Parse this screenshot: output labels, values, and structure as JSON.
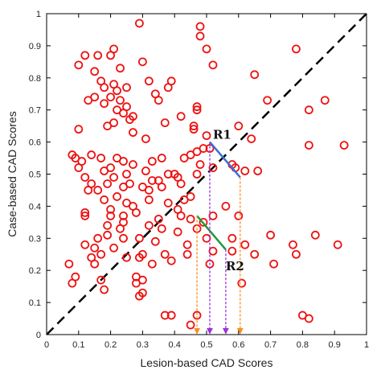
{
  "chart_data": {
    "type": "scatter",
    "xlabel": "Lesion-based CAD Scores",
    "ylabel": "Case-based CAD Scores",
    "xlim": [
      0,
      1
    ],
    "ylim": [
      0,
      1
    ],
    "xticks": [
      "0",
      "0.1",
      "0.2",
      "0.3",
      "0.4",
      "0.5",
      "0.6",
      "0.7",
      "0.8",
      "0.9",
      "1"
    ],
    "yticks": [
      "0",
      "0.1",
      "0.2",
      "0.3",
      "0.4",
      "0.5",
      "0.6",
      "0.7",
      "0.8",
      "0.9",
      "1"
    ],
    "grid": false,
    "colors": {
      "points": "#ee1111",
      "diagonal": "#000000",
      "r1_line": "#3a6fd8",
      "r2_line": "#1f9a3a",
      "arrow_orange": "#ff8c1a",
      "arrow_purple": "#9b30d9"
    },
    "diagonal": {
      "x": [
        0,
        1
      ],
      "y": [
        0,
        1
      ],
      "style": "dashed"
    },
    "annotations": [
      {
        "text": "R1",
        "x": 0.51,
        "y": 0.61
      },
      {
        "text": "R2",
        "x": 0.55,
        "y": 0.2
      }
    ],
    "segments": [
      {
        "name": "R1",
        "color": "r1_line",
        "x": [
          0.51,
          0.605
        ],
        "y": [
          0.6,
          0.49
        ]
      },
      {
        "name": "R2",
        "color": "r2_line",
        "x": [
          0.47,
          0.56
        ],
        "y": [
          0.37,
          0.265
        ]
      }
    ],
    "arrows": [
      {
        "color": "arrow_orange",
        "x": 0.47,
        "y_from": 0.37,
        "y_to": 0.0
      },
      {
        "color": "arrow_orange",
        "x": 0.605,
        "y_from": 0.49,
        "y_to": 0.0
      },
      {
        "color": "arrow_purple",
        "x": 0.51,
        "y_from": 0.6,
        "y_to": 0.0
      },
      {
        "color": "arrow_purple",
        "x": 0.56,
        "y_from": 0.265,
        "y_to": 0.0
      }
    ],
    "points": [
      [
        0.29,
        0.97
      ],
      [
        0.48,
        0.96
      ],
      [
        0.12,
        0.87
      ],
      [
        0.2,
        0.87
      ],
      [
        0.16,
        0.87
      ],
      [
        0.21,
        0.89
      ],
      [
        0.48,
        0.93
      ],
      [
        0.5,
        0.89
      ],
      [
        0.52,
        0.84
      ],
      [
        0.78,
        0.89
      ],
      [
        0.1,
        0.84
      ],
      [
        0.15,
        0.82
      ],
      [
        0.23,
        0.83
      ],
      [
        0.3,
        0.85
      ],
      [
        0.17,
        0.79
      ],
      [
        0.18,
        0.77
      ],
      [
        0.21,
        0.78
      ],
      [
        0.22,
        0.76
      ],
      [
        0.25,
        0.77
      ],
      [
        0.32,
        0.79
      ],
      [
        0.34,
        0.75
      ],
      [
        0.38,
        0.77
      ],
      [
        0.39,
        0.79
      ],
      [
        0.15,
        0.74
      ],
      [
        0.2,
        0.74
      ],
      [
        0.23,
        0.73
      ],
      [
        0.25,
        0.71
      ],
      [
        0.35,
        0.73
      ],
      [
        0.47,
        0.7
      ],
      [
        0.47,
        0.71
      ],
      [
        0.13,
        0.73
      ],
      [
        0.18,
        0.72
      ],
      [
        0.22,
        0.7
      ],
      [
        0.24,
        0.69
      ],
      [
        0.27,
        0.68
      ],
      [
        0.65,
        0.81
      ],
      [
        0.69,
        0.73
      ],
      [
        0.82,
        0.7
      ],
      [
        0.87,
        0.73
      ],
      [
        0.19,
        0.65
      ],
      [
        0.21,
        0.66
      ],
      [
        0.26,
        0.67
      ],
      [
        0.37,
        0.66
      ],
      [
        0.42,
        0.68
      ],
      [
        0.46,
        0.65
      ],
      [
        0.1,
        0.64
      ],
      [
        0.27,
        0.63
      ],
      [
        0.31,
        0.61
      ],
      [
        0.46,
        0.64
      ],
      [
        0.64,
        0.61
      ],
      [
        0.5,
        0.62
      ],
      [
        0.6,
        0.65
      ],
      [
        0.08,
        0.56
      ],
      [
        0.09,
        0.55
      ],
      [
        0.11,
        0.54
      ],
      [
        0.14,
        0.56
      ],
      [
        0.17,
        0.55
      ],
      [
        0.22,
        0.55
      ],
      [
        0.24,
        0.54
      ],
      [
        0.18,
        0.51
      ],
      [
        0.2,
        0.52
      ],
      [
        0.27,
        0.53
      ],
      [
        0.33,
        0.54
      ],
      [
        0.36,
        0.55
      ],
      [
        0.43,
        0.55
      ],
      [
        0.45,
        0.56
      ],
      [
        0.47,
        0.57
      ],
      [
        0.48,
        0.53
      ],
      [
        0.52,
        0.52
      ],
      [
        0.58,
        0.53
      ],
      [
        0.49,
        0.58
      ],
      [
        0.51,
        0.58
      ],
      [
        0.82,
        0.59
      ],
      [
        0.93,
        0.59
      ],
      [
        0.1,
        0.52
      ],
      [
        0.12,
        0.49
      ],
      [
        0.14,
        0.47
      ],
      [
        0.19,
        0.47
      ],
      [
        0.21,
        0.49
      ],
      [
        0.25,
        0.5
      ],
      [
        0.31,
        0.51
      ],
      [
        0.33,
        0.48
      ],
      [
        0.35,
        0.48
      ],
      [
        0.38,
        0.5
      ],
      [
        0.4,
        0.5
      ],
      [
        0.41,
        0.49
      ],
      [
        0.47,
        0.5
      ],
      [
        0.59,
        0.52
      ],
      [
        0.62,
        0.51
      ],
      [
        0.66,
        0.51
      ],
      [
        0.13,
        0.45
      ],
      [
        0.16,
        0.45
      ],
      [
        0.24,
        0.46
      ],
      [
        0.26,
        0.47
      ],
      [
        0.3,
        0.46
      ],
      [
        0.32,
        0.45
      ],
      [
        0.36,
        0.46
      ],
      [
        0.42,
        0.47
      ],
      [
        0.18,
        0.42
      ],
      [
        0.22,
        0.43
      ],
      [
        0.25,
        0.41
      ],
      [
        0.32,
        0.42
      ],
      [
        0.38,
        0.41
      ],
      [
        0.43,
        0.42
      ],
      [
        0.45,
        0.43
      ],
      [
        0.2,
        0.39
      ],
      [
        0.27,
        0.4
      ],
      [
        0.28,
        0.38
      ],
      [
        0.35,
        0.36
      ],
      [
        0.41,
        0.39
      ],
      [
        0.42,
        0.37
      ],
      [
        0.45,
        0.36
      ],
      [
        0.52,
        0.37
      ],
      [
        0.56,
        0.4
      ],
      [
        0.6,
        0.37
      ],
      [
        0.12,
        0.37
      ],
      [
        0.12,
        0.38
      ],
      [
        0.2,
        0.37
      ],
      [
        0.24,
        0.37
      ],
      [
        0.24,
        0.35
      ],
      [
        0.19,
        0.34
      ],
      [
        0.23,
        0.33
      ],
      [
        0.32,
        0.34
      ],
      [
        0.36,
        0.33
      ],
      [
        0.47,
        0.33
      ],
      [
        0.49,
        0.35
      ],
      [
        0.19,
        0.31
      ],
      [
        0.24,
        0.3
      ],
      [
        0.29,
        0.3
      ],
      [
        0.41,
        0.32
      ],
      [
        0.5,
        0.3
      ],
      [
        0.58,
        0.3
      ],
      [
        0.7,
        0.31
      ],
      [
        0.84,
        0.31
      ],
      [
        0.16,
        0.3
      ],
      [
        0.12,
        0.28
      ],
      [
        0.15,
        0.27
      ],
      [
        0.21,
        0.27
      ],
      [
        0.34,
        0.29
      ],
      [
        0.44,
        0.28
      ],
      [
        0.62,
        0.28
      ],
      [
        0.77,
        0.28
      ],
      [
        0.78,
        0.25
      ],
      [
        0.91,
        0.28
      ],
      [
        0.14,
        0.24
      ],
      [
        0.17,
        0.25
      ],
      [
        0.25,
        0.24
      ],
      [
        0.29,
        0.24
      ],
      [
        0.3,
        0.25
      ],
      [
        0.37,
        0.25
      ],
      [
        0.44,
        0.25
      ],
      [
        0.52,
        0.26
      ],
      [
        0.58,
        0.26
      ],
      [
        0.65,
        0.25
      ],
      [
        0.07,
        0.22
      ],
      [
        0.15,
        0.22
      ],
      [
        0.33,
        0.22
      ],
      [
        0.39,
        0.23
      ],
      [
        0.51,
        0.22
      ],
      [
        0.71,
        0.22
      ],
      [
        0.08,
        0.16
      ],
      [
        0.09,
        0.18
      ],
      [
        0.17,
        0.17
      ],
      [
        0.28,
        0.18
      ],
      [
        0.28,
        0.16
      ],
      [
        0.3,
        0.17
      ],
      [
        0.18,
        0.14
      ],
      [
        0.29,
        0.12
      ],
      [
        0.3,
        0.13
      ],
      [
        0.61,
        0.16
      ],
      [
        0.37,
        0.06
      ],
      [
        0.39,
        0.06
      ],
      [
        0.47,
        0.06
      ],
      [
        0.8,
        0.06
      ],
      [
        0.82,
        0.05
      ],
      [
        0.45,
        0.03
      ]
    ]
  }
}
